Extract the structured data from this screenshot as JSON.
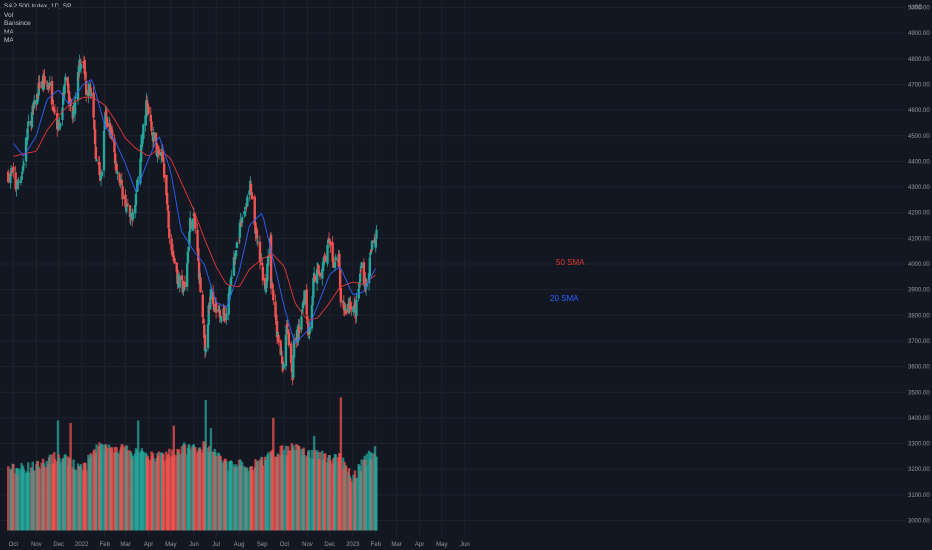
{
  "legend": {
    "symbol": "S&P 500 Index, 1D, SP",
    "items": [
      "Vol",
      "Bansince",
      "MA",
      "MA"
    ]
  },
  "colors": {
    "background": "#131722",
    "up": "#26a69a",
    "down": "#ef5350",
    "sma20": "#2962ff",
    "sma50": "#e53935",
    "grid": "#1e222d",
    "text": "#9598a1"
  },
  "chart_data": {
    "type": "candlestick",
    "currency": "USD",
    "y_ticks": [
      "5000.00",
      "4900.00",
      "4800.00",
      "4700.00",
      "4600.00",
      "4500.00",
      "4400.00",
      "4300.00",
      "4200.00",
      "4100.00",
      "4000.00",
      "3900.00",
      "3800.00",
      "3700.00",
      "3600.00",
      "3500.00",
      "3400.00",
      "3300.00",
      "3200.00",
      "3100.00",
      "3000.00"
    ],
    "x_ticks": [
      "Oct",
      "Nov",
      "Dec",
      "2022",
      "Feb",
      "Mar",
      "Apr",
      "May",
      "Jun",
      "Jul",
      "Aug",
      "Sep",
      "Oct",
      "Nov",
      "Dec",
      "2023",
      "Feb",
      "Mar",
      "Apr",
      "May",
      "Jun"
    ],
    "annotations": [
      {
        "text": "50 SMA",
        "series": "sma50"
      },
      {
        "text": "20 SMA",
        "series": "sma20"
      }
    ],
    "ylim": [
      3000,
      5050
    ],
    "close_path": [
      [
        "2021-10-01",
        4350
      ],
      [
        "2021-10-04",
        4300
      ],
      [
        "2021-10-13",
        4360
      ],
      [
        "2021-10-20",
        4520
      ],
      [
        "2021-11-02",
        4650
      ],
      [
        "2021-11-05",
        4700
      ],
      [
        "2021-11-18",
        4700
      ],
      [
        "2021-11-26",
        4600
      ],
      [
        "2021-12-01",
        4520
      ],
      [
        "2021-12-10",
        4710
      ],
      [
        "2021-12-20",
        4570
      ],
      [
        "2021-12-29",
        4790
      ],
      [
        "2022-01-03",
        4800
      ],
      [
        "2022-01-07",
        4680
      ],
      [
        "2022-01-12",
        4720
      ],
      [
        "2022-01-21",
        4400
      ],
      [
        "2022-01-27",
        4330
      ],
      [
        "2022-02-02",
        4580
      ],
      [
        "2022-02-10",
        4500
      ],
      [
        "2022-02-17",
        4380
      ],
      [
        "2022-02-24",
        4290
      ],
      [
        "2022-03-08",
        4170
      ],
      [
        "2022-03-15",
        4270
      ],
      [
        "2022-03-29",
        4630
      ],
      [
        "2022-04-05",
        4520
      ],
      [
        "2022-04-13",
        4440
      ],
      [
        "2022-04-21",
        4400
      ],
      [
        "2022-04-29",
        4130
      ],
      [
        "2022-05-11",
        3930
      ],
      [
        "2022-05-20",
        3900
      ],
      [
        "2022-05-27",
        4160
      ],
      [
        "2022-06-02",
        4170
      ],
      [
        "2022-06-10",
        3900
      ],
      [
        "2022-06-16",
        3666
      ],
      [
        "2022-06-24",
        3910
      ],
      [
        "2022-07-01",
        3820
      ],
      [
        "2022-07-14",
        3790
      ],
      [
        "2022-07-22",
        3960
      ],
      [
        "2022-08-01",
        4120
      ],
      [
        "2022-08-16",
        4300
      ],
      [
        "2022-08-26",
        4060
      ],
      [
        "2022-09-06",
        3910
      ],
      [
        "2022-09-12",
        4110
      ],
      [
        "2022-09-13",
        3930
      ],
      [
        "2022-09-23",
        3690
      ],
      [
        "2022-09-30",
        3590
      ],
      [
        "2022-10-04",
        3790
      ],
      [
        "2022-10-12",
        3570
      ],
      [
        "2022-10-13",
        3670
      ],
      [
        "2022-10-21",
        3750
      ],
      [
        "2022-10-28",
        3900
      ],
      [
        "2022-11-03",
        3720
      ],
      [
        "2022-11-10",
        3960
      ],
      [
        "2022-11-18",
        3970
      ],
      [
        "2022-11-30",
        4080
      ],
      [
        "2022-12-05",
        4000
      ],
      [
        "2022-12-13",
        4020
      ],
      [
        "2022-12-16",
        3850
      ],
      [
        "2022-12-22",
        3820
      ],
      [
        "2022-12-29",
        3850
      ],
      [
        "2023-01-05",
        3810
      ],
      [
        "2023-01-13",
        3999
      ],
      [
        "2023-01-19",
        3900
      ],
      [
        "2023-01-27",
        4070
      ],
      [
        "2023-01-31",
        4080
      ],
      [
        "2023-02-02",
        4120
      ]
    ],
    "sma20_path": [
      [
        "2021-10-01",
        4470
      ],
      [
        "2021-10-15",
        4420
      ],
      [
        "2021-11-01",
        4500
      ],
      [
        "2021-11-15",
        4640
      ],
      [
        "2021-12-01",
        4680
      ],
      [
        "2021-12-15",
        4620
      ],
      [
        "2022-01-03",
        4700
      ],
      [
        "2022-01-15",
        4720
      ],
      [
        "2022-02-01",
        4540
      ],
      [
        "2022-02-15",
        4480
      ],
      [
        "2022-03-01",
        4390
      ],
      [
        "2022-03-15",
        4280
      ],
      [
        "2022-04-01",
        4410
      ],
      [
        "2022-04-15",
        4500
      ],
      [
        "2022-05-01",
        4360
      ],
      [
        "2022-05-15",
        4130
      ],
      [
        "2022-06-01",
        4050
      ],
      [
        "2022-06-15",
        4000
      ],
      [
        "2022-07-01",
        3850
      ],
      [
        "2022-07-15",
        3830
      ],
      [
        "2022-08-01",
        3970
      ],
      [
        "2022-08-15",
        4150
      ],
      [
        "2022-09-01",
        4200
      ],
      [
        "2022-09-15",
        4030
      ],
      [
        "2022-10-01",
        3830
      ],
      [
        "2022-10-15",
        3690
      ],
      [
        "2022-11-01",
        3740
      ],
      [
        "2022-11-15",
        3840
      ],
      [
        "2022-12-01",
        3960
      ],
      [
        "2022-12-15",
        3990
      ],
      [
        "2023-01-01",
        3880
      ],
      [
        "2023-01-15",
        3890
      ],
      [
        "2023-02-02",
        3990
      ]
    ],
    "sma50_path": [
      [
        "2021-10-01",
        4420
      ],
      [
        "2021-11-01",
        4440
      ],
      [
        "2021-11-15",
        4520
      ],
      [
        "2021-12-01",
        4580
      ],
      [
        "2021-12-15",
        4620
      ],
      [
        "2022-01-03",
        4650
      ],
      [
        "2022-01-15",
        4650
      ],
      [
        "2022-02-01",
        4620
      ],
      [
        "2022-02-15",
        4560
      ],
      [
        "2022-03-01",
        4490
      ],
      [
        "2022-03-15",
        4450
      ],
      [
        "2022-04-01",
        4420
      ],
      [
        "2022-04-15",
        4450
      ],
      [
        "2022-05-01",
        4410
      ],
      [
        "2022-05-15",
        4320
      ],
      [
        "2022-06-01",
        4210
      ],
      [
        "2022-06-15",
        4100
      ],
      [
        "2022-07-01",
        3990
      ],
      [
        "2022-07-15",
        3920
      ],
      [
        "2022-08-01",
        3910
      ],
      [
        "2022-08-15",
        3980
      ],
      [
        "2022-09-01",
        4020
      ],
      [
        "2022-09-15",
        4040
      ],
      [
        "2022-10-01",
        3990
      ],
      [
        "2022-10-15",
        3850
      ],
      [
        "2022-11-01",
        3780
      ],
      [
        "2022-11-15",
        3790
      ],
      [
        "2022-12-01",
        3850
      ],
      [
        "2022-12-15",
        3910
      ],
      [
        "2023-01-01",
        3930
      ],
      [
        "2023-01-15",
        3920
      ],
      [
        "2023-02-02",
        3960
      ]
    ],
    "volume_profile": [
      [
        "2021-10-01",
        3200
      ],
      [
        "2021-11-01",
        3210
      ],
      [
        "2021-12-01",
        3250
      ],
      [
        "2021-12-20",
        3220
      ],
      [
        "2022-01-03",
        3200
      ],
      [
        "2022-01-20",
        3280
      ],
      [
        "2022-02-15",
        3280
      ],
      [
        "2022-03-15",
        3260
      ],
      [
        "2022-04-15",
        3250
      ],
      [
        "2022-05-15",
        3280
      ],
      [
        "2022-06-15",
        3290
      ],
      [
        "2022-07-15",
        3220
      ],
      [
        "2022-08-15",
        3210
      ],
      [
        "2022-09-15",
        3260
      ],
      [
        "2022-10-15",
        3280
      ],
      [
        "2022-11-15",
        3250
      ],
      [
        "2022-12-15",
        3240
      ],
      [
        "2023-01-01",
        3160
      ],
      [
        "2023-01-15",
        3230
      ],
      [
        "2023-02-02",
        3270
      ]
    ],
    "volume_spikes": [
      [
        "2021-11-30",
        3390
      ],
      [
        "2021-12-17",
        3380
      ],
      [
        "2022-01-24",
        3290
      ],
      [
        "2022-03-18",
        3390
      ],
      [
        "2022-05-05",
        3370
      ],
      [
        "2022-06-17",
        3470
      ],
      [
        "2022-06-24",
        3360
      ],
      [
        "2022-09-16",
        3400
      ],
      [
        "2022-11-10",
        3330
      ],
      [
        "2022-12-16",
        3480
      ],
      [
        "2023-01-31",
        3290
      ]
    ]
  }
}
